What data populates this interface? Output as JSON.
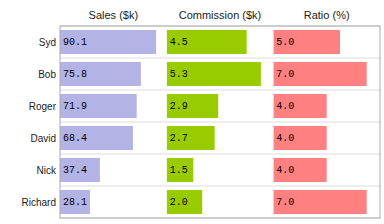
{
  "chart_data": [
    {
      "type": "bar",
      "orientation": "horizontal",
      "title": "Sales ($k)",
      "categories": [
        "Syd",
        "Bob",
        "Roger",
        "David",
        "Nick",
        "Richard"
      ],
      "values": [
        90.1,
        75.8,
        71.9,
        68.4,
        37.4,
        28.1
      ],
      "color": "#b3b3e6",
      "xlim": [
        0,
        100
      ],
      "data_labels": true,
      "tick_labels": "y"
    },
    {
      "type": "bar",
      "orientation": "horizontal",
      "title": "Commission ($k)",
      "values": [
        4.5,
        5.3,
        2.9,
        2.7,
        1.5,
        2.0
      ],
      "value_labels": [
        "4.5",
        "5.3",
        "2.9",
        "2.7",
        "1.5",
        "2.0"
      ],
      "color": "#99cc00",
      "xlim": [
        0,
        6
      ],
      "data_labels": true,
      "tick_labels": false
    },
    {
      "type": "bar",
      "orientation": "horizontal",
      "title": "Ratio (%)",
      "values": [
        5.0,
        7.0,
        4.0,
        4.0,
        4.0,
        7.0
      ],
      "value_labels": [
        "5.0",
        "7.0",
        "4.0",
        "4.0",
        "4.0",
        "7.0"
      ],
      "color": "#ff8080",
      "xlim": [
        0,
        8
      ],
      "data_labels": true,
      "tick_labels": false
    }
  ]
}
